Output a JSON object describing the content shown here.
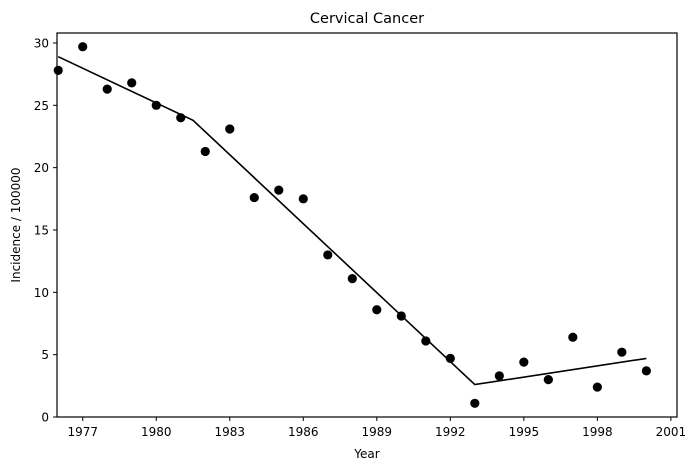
{
  "chart_data": {
    "type": "scatter",
    "title": "Cervical Cancer",
    "xlabel": "Year",
    "ylabel": "Incidence / 100000",
    "xlim": [
      1975.95,
      2001.25
    ],
    "ylim": [
      0,
      30.8
    ],
    "xticks": [
      1977,
      1980,
      1983,
      1986,
      1989,
      1992,
      1995,
      1998,
      2001
    ],
    "yticks": [
      0,
      5,
      10,
      15,
      20,
      25,
      30
    ],
    "grid": false,
    "legend": "none",
    "colors": {
      "points": "#000000",
      "line": "#000000",
      "axes": "#000000",
      "background": "#ffffff"
    },
    "series": [
      {
        "type": "scatter",
        "x": [
          1976,
          1977,
          1978,
          1979,
          1980,
          1981,
          1982,
          1983,
          1984,
          1985,
          1986,
          1987,
          1988,
          1989,
          1990,
          1991,
          1992,
          1993,
          1994,
          1995,
          1996,
          1997,
          1998,
          1999,
          2000
        ],
        "y": [
          27.8,
          29.7,
          26.3,
          26.8,
          25.0,
          24.0,
          21.3,
          23.1,
          17.6,
          18.2,
          17.5,
          13.0,
          11.1,
          8.6,
          8.1,
          6.1,
          4.7,
          1.1,
          3.3,
          4.4,
          3.0,
          6.4,
          2.4,
          5.2,
          3.7
        ]
      },
      {
        "type": "line",
        "x": [
          1976,
          1981.5,
          1993,
          2000
        ],
        "y": [
          28.9,
          23.8,
          2.6,
          4.7
        ]
      }
    ]
  }
}
